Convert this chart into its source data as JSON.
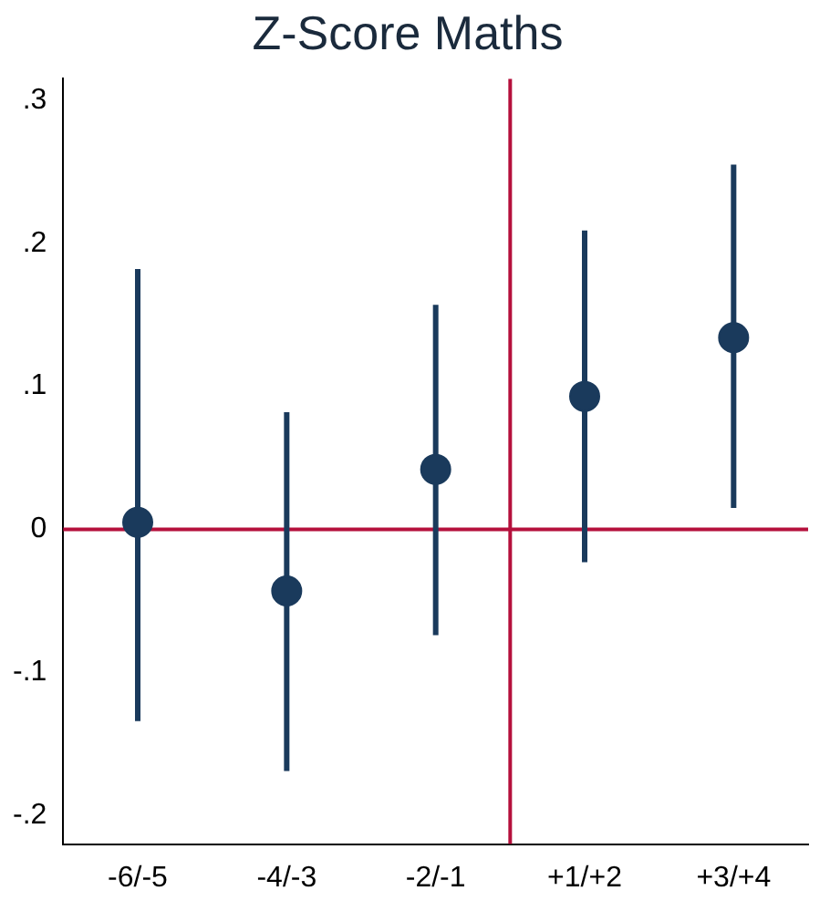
{
  "chart_data": {
    "type": "scatter",
    "title": "Z-Score Maths",
    "categories": [
      "-6/-5",
      "-4/-3",
      "-2/-1",
      "+1/+2",
      "+3/+4"
    ],
    "ylim": [
      -0.22,
      0.315
    ],
    "yticks": [
      {
        "value": -0.2,
        "label": "-.2"
      },
      {
        "value": -0.1,
        "label": "-.1"
      },
      0,
      {
        "value": 0.1,
        "label": ".1"
      },
      {
        "value": 0.2,
        "label": ".2"
      },
      {
        "value": 0.3,
        "label": ".3"
      }
    ],
    "series": [
      {
        "color": "#1a3a5c",
        "values": [
          0.005,
          -0.043,
          0.042,
          0.093,
          0.134
        ],
        "errors": [
          [
            -0.134,
            0.182
          ],
          [
            -0.169,
            0.082
          ],
          [
            -0.074,
            0.157
          ],
          [
            -0.023,
            0.209
          ],
          [
            0.015,
            0.255
          ]
        ]
      }
    ],
    "ref_lines": [
      {
        "axis": "y",
        "value": 0,
        "color": "#b5103c"
      }
    ],
    "marker": "circle",
    "grid": false,
    "legend": false
  }
}
